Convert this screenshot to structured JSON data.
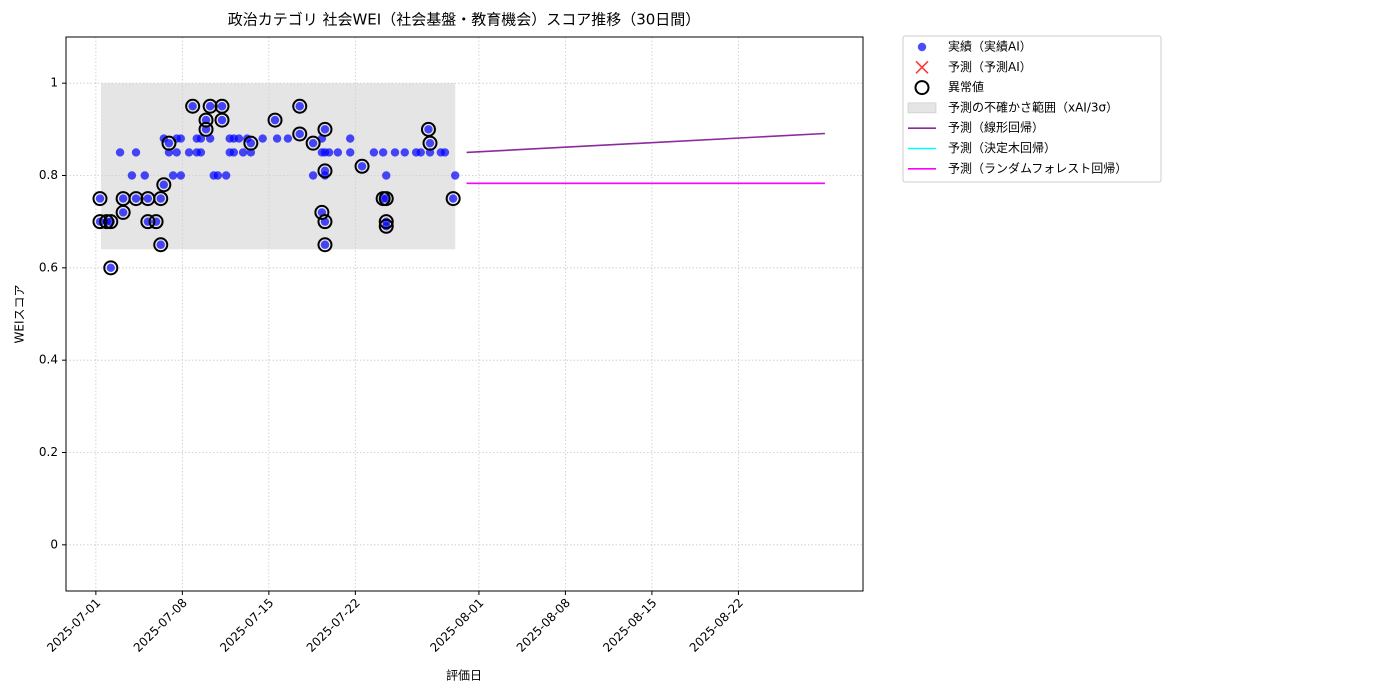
{
  "chart_data": {
    "type": "scatter",
    "title": "政治カテゴリ 社会WEI（社会基盤・教育機会）スコア推移（30日間）",
    "x_label": "評価日",
    "y_label": "WEIスコア",
    "xlim": [
      "2025-06-28 14:00",
      "2025-09-01 02:00"
    ],
    "xticks": [
      "2025-07-01",
      "2025-07-08",
      "2025-07-15",
      "2025-07-22",
      "2025-08-01",
      "2025-08-08",
      "2025-08-15",
      "2025-08-22"
    ],
    "ylim": [
      -0.1,
      1.1
    ],
    "yticks": [
      0.0,
      0.2,
      0.4,
      0.6,
      0.8,
      1.0
    ],
    "grid": true,
    "legend": "outside upper right",
    "series": [
      {
        "name": "実績（実績AI）",
        "type": "scatter",
        "marker": "dot",
        "color": "#0000ff",
        "x": [
          "2025-07-01 08:00",
          "2025-07-01 08:00",
          "2025-07-01 21:00",
          "2025-07-02 05:00",
          "2025-07-02 05:00",
          "2025-07-02 23:00",
          "2025-07-03 05:00",
          "2025-07-03 05:00",
          "2025-07-03 22:00",
          "2025-07-04 06:00",
          "2025-07-04 06:00",
          "2025-07-04 23:00",
          "2025-07-05 05:00",
          "2025-07-05 05:00",
          "2025-07-05 21:00",
          "2025-07-06 06:00",
          "2025-07-06 06:00",
          "2025-07-06 12:00",
          "2025-07-06 12:00",
          "2025-07-06 22:00",
          "2025-07-06 22:00",
          "2025-07-07 06:00",
          "2025-07-07 13:00",
          "2025-07-07 13:00",
          "2025-07-07 21:00",
          "2025-07-07 21:00",
          "2025-07-08 13:00",
          "2025-07-08 20:00",
          "2025-07-09 04:00",
          "2025-07-09 04:00",
          "2025-07-09 12:00",
          "2025-07-09 12:00",
          "2025-07-09 22:00",
          "2025-07-09 22:00",
          "2025-07-10 06:00",
          "2025-07-10 06:00",
          "2025-07-10 13:00",
          "2025-07-10 21:00",
          "2025-07-11 05:00",
          "2025-07-11 05:00",
          "2025-07-11 13:00",
          "2025-07-11 20:00",
          "2025-07-11 20:00",
          "2025-07-12 04:00",
          "2025-07-12 04:00",
          "2025-07-12 14:00",
          "2025-07-12 22:00",
          "2025-07-13 06:00",
          "2025-07-13 13:00",
          "2025-07-13 13:00",
          "2025-07-14 12:00",
          "2025-07-15 12:00",
          "2025-07-15 16:00",
          "2025-07-16 13:00",
          "2025-07-17 12:00",
          "2025-07-17 12:00",
          "2025-07-18 14:00",
          "2025-07-18 14:00",
          "2025-07-19 07:00",
          "2025-07-19 07:00",
          "2025-07-19 07:00",
          "2025-07-19 13:00",
          "2025-07-19 13:00",
          "2025-07-19 13:00",
          "2025-07-19 13:00",
          "2025-07-19 13:00",
          "2025-07-19 13:00",
          "2025-07-19 21:00",
          "2025-07-20 14:00",
          "2025-07-21 14:00",
          "2025-07-21 14:00",
          "2025-07-22 13:00",
          "2025-07-23 12:00",
          "2025-07-24 06:00",
          "2025-07-24 06:00",
          "2025-07-24 12:00",
          "2025-07-24 12:00",
          "2025-07-24 12:00",
          "2025-07-24 12:00",
          "2025-07-25 05:00",
          "2025-07-26 00:00",
          "2025-07-26 22:00",
          "2025-07-27 07:00",
          "2025-07-27 22:00",
          "2025-07-28 01:00",
          "2025-07-28 01:00",
          "2025-07-28 22:00",
          "2025-07-29 06:00",
          "2025-07-29 22:00",
          "2025-07-30 02:00"
        ],
        "values": [
          0.75,
          0.7,
          0.7,
          0.6,
          0.7,
          0.85,
          0.72,
          0.75,
          0.8,
          0.85,
          0.75,
          0.8,
          0.75,
          0.7,
          0.7,
          0.75,
          0.65,
          0.88,
          0.78,
          0.87,
          0.85,
          0.8,
          0.85,
          0.88,
          0.88,
          0.8,
          0.85,
          0.95,
          0.88,
          0.85,
          0.85,
          0.88,
          0.9,
          0.92,
          0.95,
          0.88,
          0.8,
          0.8,
          0.95,
          0.92,
          0.8,
          0.85,
          0.88,
          0.88,
          0.85,
          0.88,
          0.85,
          0.88,
          0.87,
          0.85,
          0.88,
          0.92,
          0.88,
          0.88,
          0.95,
          0.89,
          0.87,
          0.8,
          0.72,
          0.88,
          0.85,
          0.9,
          0.81,
          0.7,
          0.65,
          0.85,
          0.8,
          0.85,
          0.85,
          0.88,
          0.85,
          0.82,
          0.85,
          0.85,
          0.75,
          0.8,
          0.75,
          0.7,
          0.69,
          0.85,
          0.85,
          0.85,
          0.85,
          0.9,
          0.87,
          0.85,
          0.85,
          0.85,
          0.75,
          0.8
        ]
      },
      {
        "name": "予測（予測AI）",
        "type": "scatter",
        "marker": "cross",
        "color": "#ff0000",
        "x": [],
        "values": []
      },
      {
        "name": "異常値",
        "type": "scatter",
        "marker": "ring",
        "color": "#000000",
        "x": [
          "2025-07-01 08:00",
          "2025-07-01 08:00",
          "2025-07-01 21:00",
          "2025-07-02 05:00",
          "2025-07-02 05:00",
          "2025-07-03 05:00",
          "2025-07-03 05:00",
          "2025-07-04 06:00",
          "2025-07-05 05:00",
          "2025-07-05 05:00",
          "2025-07-05 21:00",
          "2025-07-06 06:00",
          "2025-07-06 06:00",
          "2025-07-06 12:00",
          "2025-07-06 22:00",
          "2025-07-08 20:00",
          "2025-07-09 22:00",
          "2025-07-09 22:00",
          "2025-07-10 06:00",
          "2025-07-11 05:00",
          "2025-07-11 05:00",
          "2025-07-13 13:00",
          "2025-07-15 12:00",
          "2025-07-17 12:00",
          "2025-07-17 12:00",
          "2025-07-18 14:00",
          "2025-07-19 07:00",
          "2025-07-19 13:00",
          "2025-07-19 13:00",
          "2025-07-19 13:00",
          "2025-07-19 13:00",
          "2025-07-22 13:00",
          "2025-07-24 06:00",
          "2025-07-24 12:00",
          "2025-07-24 12:00",
          "2025-07-24 12:00",
          "2025-07-27 22:00",
          "2025-07-28 01:00",
          "2025-07-29 22:00"
        ],
        "values": [
          0.75,
          0.7,
          0.7,
          0.6,
          0.7,
          0.72,
          0.75,
          0.75,
          0.75,
          0.7,
          0.7,
          0.75,
          0.65,
          0.78,
          0.87,
          0.95,
          0.9,
          0.92,
          0.95,
          0.95,
          0.92,
          0.87,
          0.92,
          0.95,
          0.89,
          0.87,
          0.72,
          0.9,
          0.81,
          0.7,
          0.65,
          0.82,
          0.75,
          0.75,
          0.7,
          0.69,
          0.9,
          0.87,
          0.75
        ]
      },
      {
        "name": "予測の不確かさ範囲（xAI/3σ）",
        "type": "band",
        "color": "#d3d3d3",
        "x": [
          "2025-07-01 10:00",
          "2025-07-30 02:00"
        ],
        "values": [
          0.64,
          1.0
        ]
      },
      {
        "name": "予測（線形回帰）",
        "type": "line",
        "color": "#8b2a9b",
        "x": [
          "2025-07-31",
          "2025-08-29"
        ],
        "values": [
          0.85,
          0.891
        ]
      },
      {
        "name": "予測（決定木回帰）",
        "type": "line",
        "color": "#00ffff",
        "x": [
          "2025-07-31",
          "2025-08-29"
        ],
        "values": [
          0.783,
          0.783
        ]
      },
      {
        "name": "予測（ランダムフォレスト回帰）",
        "type": "line",
        "color": "#ff00ff",
        "x": [
          "2025-07-31",
          "2025-08-29"
        ],
        "values": [
          0.783,
          0.783
        ]
      }
    ]
  }
}
